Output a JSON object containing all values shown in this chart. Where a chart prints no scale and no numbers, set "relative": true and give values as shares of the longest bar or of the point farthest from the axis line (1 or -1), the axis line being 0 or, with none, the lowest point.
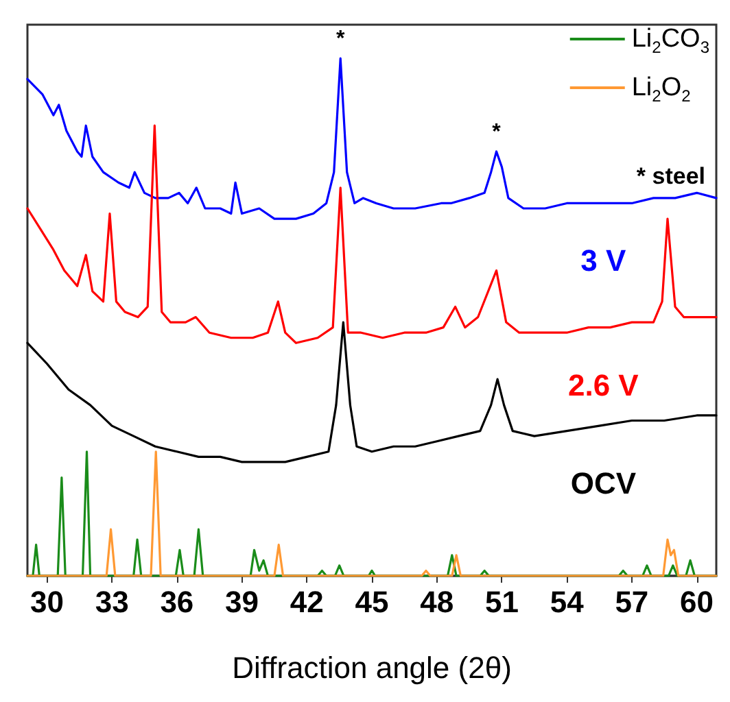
{
  "chart_data": {
    "type": "line",
    "relative": true,
    "xlabel": "Diffraction angle (2θ)",
    "xlim": [
      29.1,
      60.9
    ],
    "xticks": [
      30,
      33,
      36,
      39,
      42,
      45,
      48,
      51,
      54,
      57,
      60
    ],
    "legend": "top right",
    "grid": false,
    "marker": "none",
    "line_style": "solid",
    "annotations": [
      {
        "text": "*",
        "x": 43.55,
        "y": 1.0
      },
      {
        "text": "*",
        "x": 50.75,
        "y": 0.82
      },
      "* steel"
    ],
    "series": [
      {
        "name": "3 V",
        "color": "#0000ff",
        "x": [
          29.1,
          29.8,
          30.3,
          30.55,
          30.9,
          31.4,
          31.6,
          31.8,
          32.1,
          32.6,
          33.3,
          33.8,
          34.05,
          34.5,
          35.0,
          35.6,
          36.1,
          36.5,
          36.9,
          37.3,
          38.0,
          38.5,
          38.7,
          39.0,
          39.8,
          40.5,
          41.5,
          42.3,
          42.9,
          43.25,
          43.55,
          43.85,
          44.2,
          44.6,
          45.2,
          46.0,
          47.0,
          48.2,
          48.65,
          49.5,
          50.2,
          50.5,
          50.75,
          51.0,
          51.3,
          52.0,
          53.0,
          54.0,
          55.0,
          56.0,
          57.0,
          58.0,
          59.0,
          60.0,
          60.9
        ],
        "values": [
          0.96,
          0.93,
          0.89,
          0.91,
          0.86,
          0.82,
          0.81,
          0.87,
          0.81,
          0.78,
          0.76,
          0.75,
          0.78,
          0.74,
          0.73,
          0.73,
          0.74,
          0.72,
          0.75,
          0.71,
          0.71,
          0.7,
          0.76,
          0.7,
          0.71,
          0.69,
          0.69,
          0.7,
          0.72,
          0.78,
          1.0,
          0.78,
          0.72,
          0.73,
          0.72,
          0.71,
          0.71,
          0.72,
          0.72,
          0.73,
          0.74,
          0.78,
          0.82,
          0.79,
          0.73,
          0.71,
          0.71,
          0.72,
          0.72,
          0.72,
          0.72,
          0.73,
          0.73,
          0.74,
          0.73
        ]
      },
      {
        "name": "2.6 V",
        "color": "#ff0000",
        "x": [
          29.1,
          29.7,
          30.3,
          30.8,
          31.4,
          31.8,
          32.1,
          32.6,
          32.9,
          33.2,
          33.6,
          34.2,
          34.65,
          34.97,
          35.3,
          35.7,
          36.4,
          36.87,
          37.5,
          38.5,
          39.5,
          40.2,
          40.67,
          41.0,
          41.5,
          42.5,
          43.2,
          43.55,
          43.9,
          44.5,
          45.5,
          46.5,
          47.5,
          48.3,
          48.85,
          49.3,
          49.9,
          50.75,
          51.2,
          51.8,
          53,
          54,
          55,
          56,
          57,
          58,
          58.4,
          58.65,
          59.0,
          59.4,
          60,
          60.9
        ],
        "values": [
          0.71,
          0.67,
          0.63,
          0.59,
          0.56,
          0.62,
          0.55,
          0.53,
          0.7,
          0.53,
          0.51,
          0.5,
          0.52,
          0.87,
          0.51,
          0.49,
          0.49,
          0.5,
          0.47,
          0.46,
          0.46,
          0.47,
          0.53,
          0.47,
          0.45,
          0.46,
          0.48,
          0.75,
          0.47,
          0.47,
          0.46,
          0.47,
          0.47,
          0.48,
          0.52,
          0.48,
          0.5,
          0.59,
          0.49,
          0.47,
          0.47,
          0.47,
          0.48,
          0.48,
          0.49,
          0.49,
          0.53,
          0.69,
          0.52,
          0.5,
          0.5,
          0.5
        ]
      },
      {
        "name": "OCV",
        "color": "#000000",
        "x": [
          29.1,
          30,
          31,
          32,
          33,
          34,
          35,
          36,
          37,
          38,
          39,
          40,
          41,
          42,
          43,
          43.35,
          43.68,
          44.0,
          44.3,
          45,
          46,
          47,
          48,
          49,
          50,
          50.5,
          50.8,
          51.1,
          51.5,
          52.5,
          54,
          55.5,
          57,
          58.5,
          60,
          60.9
        ],
        "values": [
          0.45,
          0.41,
          0.36,
          0.33,
          0.29,
          0.27,
          0.25,
          0.24,
          0.23,
          0.23,
          0.22,
          0.22,
          0.22,
          0.23,
          0.24,
          0.33,
          0.49,
          0.33,
          0.25,
          0.24,
          0.25,
          0.25,
          0.26,
          0.27,
          0.28,
          0.33,
          0.38,
          0.33,
          0.28,
          0.27,
          0.28,
          0.29,
          0.3,
          0.3,
          0.31,
          0.31
        ]
      },
      {
        "name": "Li$_{2}$CO$_{3}$",
        "color": "#1a8c1a",
        "x": [
          29.1,
          29.35,
          29.5,
          29.65,
          30.5,
          30.68,
          30.85,
          31.65,
          31.84,
          32.0,
          34.0,
          34.17,
          34.35,
          35.95,
          36.13,
          36.3,
          36.8,
          37.0,
          37.2,
          39.4,
          39.57,
          39.8,
          40.0,
          40.2,
          42.5,
          42.7,
          42.9,
          43.3,
          43.5,
          43.7,
          44.85,
          45.0,
          45.15,
          48.5,
          48.7,
          48.9,
          50.0,
          50.2,
          50.4,
          56.4,
          56.6,
          56.8,
          57.5,
          57.7,
          57.9,
          58.7,
          58.9,
          59.1,
          59.5,
          59.7,
          59.9,
          60.9
        ],
        "values": [
          0,
          0,
          0.06,
          0,
          0,
          0.19,
          0,
          0,
          0.24,
          0,
          0,
          0.07,
          0,
          0,
          0.05,
          0,
          0,
          0.09,
          0,
          0,
          0.05,
          0.01,
          0.03,
          0,
          0,
          0.01,
          0,
          0,
          0.02,
          0,
          0,
          0.01,
          0,
          0,
          0.04,
          0,
          0,
          0.01,
          0,
          0,
          0.01,
          0,
          0,
          0.02,
          0,
          0,
          0.02,
          0,
          0,
          0.03,
          0,
          0
        ]
      },
      {
        "name": "Li$_{2}$O$_{2}$",
        "color": "#ff9933",
        "x": [
          29.1,
          32.75,
          32.95,
          33.15,
          34.8,
          35.03,
          35.25,
          40.5,
          40.7,
          40.9,
          47.3,
          47.5,
          47.7,
          48.7,
          48.9,
          49.1,
          58.45,
          58.65,
          58.8,
          58.95,
          59.15,
          60.9
        ],
        "values": [
          0,
          0,
          0.09,
          0,
          0,
          0.24,
          0,
          0,
          0.06,
          0,
          0,
          0.01,
          0,
          0,
          0.04,
          0,
          0,
          0.07,
          0.04,
          0.05,
          0,
          0
        ]
      }
    ]
  }
}
